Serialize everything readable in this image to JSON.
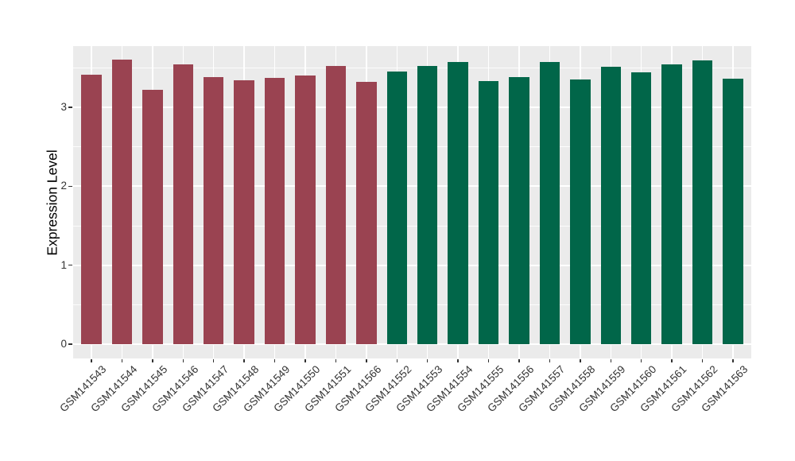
{
  "chart_data": {
    "type": "bar",
    "title": "",
    "xlabel": "",
    "ylabel": "Expression Level",
    "categories": [
      "GSM141543",
      "GSM141544",
      "GSM141545",
      "GSM141546",
      "GSM141547",
      "GSM141548",
      "GSM141549",
      "GSM141550",
      "GSM141551",
      "GSM141566",
      "GSM141552",
      "GSM141553",
      "GSM141554",
      "GSM141555",
      "GSM141556",
      "GSM141557",
      "GSM141558",
      "GSM141559",
      "GSM141560",
      "GSM141561",
      "GSM141562",
      "GSM141563"
    ],
    "values": [
      3.41,
      3.61,
      3.22,
      3.54,
      3.38,
      3.34,
      3.37,
      3.4,
      3.52,
      3.32,
      3.45,
      3.52,
      3.57,
      3.33,
      3.38,
      3.57,
      3.35,
      3.51,
      3.44,
      3.54,
      3.6,
      3.36
    ],
    "groups": [
      "group1",
      "group1",
      "group1",
      "group1",
      "group1",
      "group1",
      "group1",
      "group1",
      "group1",
      "group1",
      "group2",
      "group2",
      "group2",
      "group2",
      "group2",
      "group2",
      "group2",
      "group2",
      "group2",
      "group2",
      "group2",
      "group2"
    ],
    "group_colors": {
      "group1": "#9A4351",
      "group2": "#016649"
    },
    "yticks": [
      0,
      1,
      2,
      3
    ],
    "yticks_minor": [
      0.5,
      1.5,
      2.5,
      3.5
    ],
    "ylim": [
      -0.19,
      3.78
    ],
    "bar_width_fraction": 0.66,
    "panel_background": "#EBEBEB",
    "grid_color": "#FFFFFF",
    "axis_text_color": "#333333",
    "tick_mark_color": "#333333",
    "grid": "major+minor horizontal, major vertical at categories",
    "legend_position": "none"
  }
}
